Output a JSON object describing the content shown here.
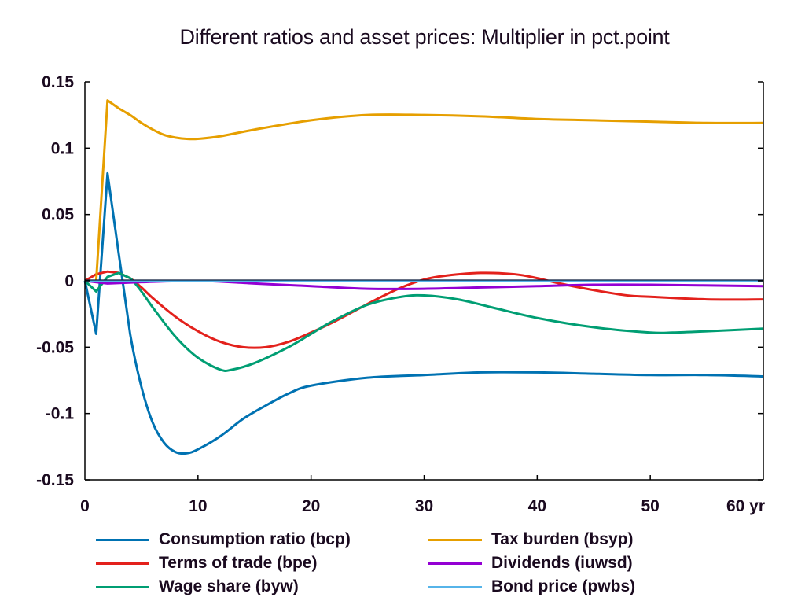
{
  "chart_data": {
    "type": "line",
    "title": "Different ratios and asset prices: Multiplier in pct.point",
    "xlabel": "",
    "ylabel": "",
    "x_unit_label": "yr",
    "xlim": [
      0,
      60
    ],
    "ylim": [
      -0.15,
      0.15
    ],
    "x_ticks": [
      0,
      10,
      20,
      30,
      40,
      50,
      60
    ],
    "x_tick_labels": [
      "0",
      "10",
      "20",
      "30",
      "40",
      "50",
      "60 yr"
    ],
    "y_ticks": [
      -0.15,
      -0.1,
      -0.05,
      0,
      0.05,
      0.1,
      0.15
    ],
    "y_tick_labels": [
      "-0.15",
      "-0.1",
      "-0.05",
      "0",
      "0.05",
      "0.1",
      "0.15"
    ],
    "grid": false,
    "legend_position": "bottom",
    "series": [
      {
        "name": "Consumption ratio (bcp)",
        "color": "#0072b2",
        "x": [
          0,
          1,
          2,
          3,
          4,
          5,
          6,
          7,
          8,
          9,
          10,
          12,
          14,
          16,
          18,
          20,
          25,
          30,
          35,
          40,
          45,
          50,
          55,
          60
        ],
        "values": [
          0,
          -0.04,
          0.081,
          0.02,
          -0.04,
          -0.08,
          -0.107,
          -0.122,
          -0.129,
          -0.13,
          -0.127,
          -0.117,
          -0.104,
          -0.094,
          -0.085,
          -0.079,
          -0.073,
          -0.071,
          -0.069,
          -0.069,
          -0.07,
          -0.071,
          -0.071,
          -0.072
        ]
      },
      {
        "name": "Terms of trade (bpe)",
        "color": "#e3211c",
        "x": [
          0,
          1,
          2,
          3,
          4,
          5,
          6,
          8,
          10,
          12,
          14,
          16,
          18,
          20,
          22,
          24,
          26,
          28,
          30,
          32,
          35,
          38,
          40,
          42,
          45,
          48,
          50,
          55,
          60
        ],
        "values": [
          0,
          0.005,
          0.007,
          0.006,
          0.002,
          -0.005,
          -0.013,
          -0.027,
          -0.038,
          -0.046,
          -0.05,
          -0.05,
          -0.046,
          -0.039,
          -0.031,
          -0.022,
          -0.013,
          -0.005,
          0.001,
          0.004,
          0.006,
          0.005,
          0.002,
          -0.002,
          -0.007,
          -0.011,
          -0.012,
          -0.014,
          -0.014
        ]
      },
      {
        "name": "Wage share (byw)",
        "color": "#009e73",
        "x": [
          0,
          1,
          2,
          3,
          4,
          5,
          6,
          8,
          10,
          12,
          13,
          15,
          18,
          20,
          22,
          25,
          28,
          30,
          33,
          36,
          40,
          45,
          50,
          52,
          55,
          60
        ],
        "values": [
          0,
          -0.008,
          0.003,
          0.006,
          0.002,
          -0.008,
          -0.02,
          -0.042,
          -0.058,
          -0.067,
          -0.067,
          -0.062,
          -0.05,
          -0.04,
          -0.03,
          -0.018,
          -0.012,
          -0.011,
          -0.014,
          -0.02,
          -0.028,
          -0.035,
          -0.039,
          -0.039,
          -0.038,
          -0.036
        ]
      },
      {
        "name": "Tax burden (bsyp)",
        "color": "#e69f00",
        "x": [
          0,
          1,
          2,
          3,
          4,
          5,
          6,
          7,
          8,
          9,
          10,
          12,
          15,
          20,
          25,
          30,
          35,
          40,
          45,
          50,
          55,
          60
        ],
        "values": [
          0,
          0.0,
          0.136,
          0.13,
          0.125,
          0.119,
          0.114,
          0.11,
          0.108,
          0.107,
          0.107,
          0.109,
          0.114,
          0.121,
          0.125,
          0.125,
          0.124,
          0.122,
          0.121,
          0.12,
          0.119,
          0.119
        ]
      },
      {
        "name": "Dividends (iuwsd)",
        "color": "#9400d3",
        "x": [
          0,
          2,
          5,
          10,
          15,
          20,
          25,
          30,
          35,
          40,
          45,
          50,
          60
        ],
        "values": [
          0,
          -0.002,
          -0.001,
          0.0,
          -0.002,
          -0.004,
          -0.006,
          -0.006,
          -0.005,
          -0.004,
          -0.003,
          -0.003,
          -0.004
        ]
      },
      {
        "name": "Bond price (pwbs)",
        "color": "#56b4e9",
        "x": [
          0,
          60
        ],
        "values": [
          0,
          0
        ]
      }
    ]
  },
  "legend": {
    "items": [
      {
        "label": "Consumption ratio (bcp)",
        "color": "#0072b2"
      },
      {
        "label": "Terms of trade (bpe)",
        "color": "#e3211c"
      },
      {
        "label": "Wage share (byw)",
        "color": "#009e73"
      },
      {
        "label": "Tax burden (bsyp)",
        "color": "#e69f00"
      },
      {
        "label": "Dividends (iuwsd)",
        "color": "#9400d3"
      },
      {
        "label": "Bond price (pwbs)",
        "color": "#56b4e9"
      }
    ]
  }
}
